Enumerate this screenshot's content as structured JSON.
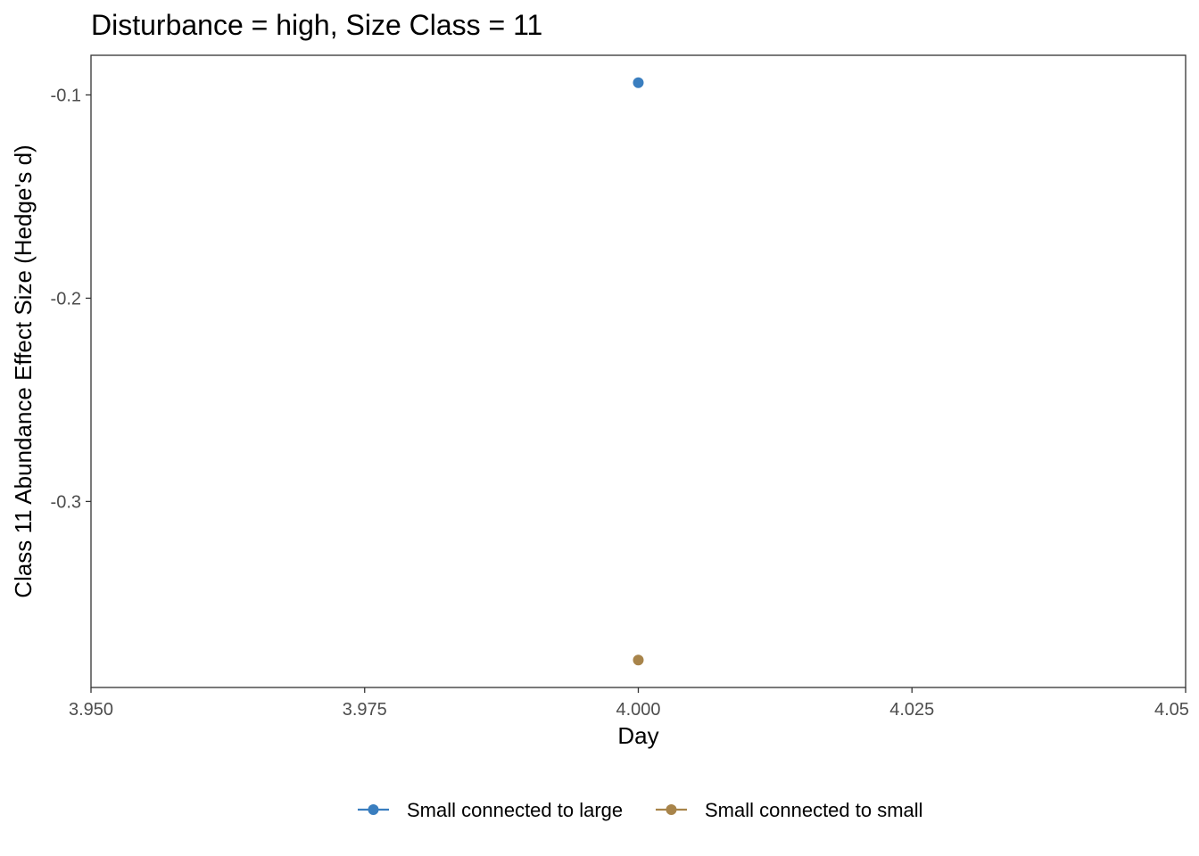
{
  "chart_data": {
    "type": "scatter",
    "title": "Disturbance = high, Size Class = 11",
    "xlabel": "Day",
    "ylabel": "Class 11 Abundance Effect Size (Hedge's d)",
    "xlim": [
      3.95,
      4.05
    ],
    "ylim": [
      -0.3915,
      -0.0805
    ],
    "x_ticks": [
      3.95,
      3.975,
      4.0,
      4.025,
      4.05
    ],
    "x_tick_labels": [
      "3.950",
      "3.975",
      "4.000",
      "4.025",
      "4.05"
    ],
    "y_ticks": [
      -0.1,
      -0.2,
      -0.3
    ],
    "y_tick_labels": [
      "-0.1",
      "-0.2",
      "-0.3"
    ],
    "grid": false,
    "legend_position": "bottom",
    "series": [
      {
        "name": "Small connected to large",
        "color": "#3a7ebf",
        "x": [
          4.0
        ],
        "y": [
          -0.094
        ]
      },
      {
        "name": "Small connected to small",
        "color": "#a8844a",
        "x": [
          4.0
        ],
        "y": [
          -0.378
        ]
      }
    ]
  }
}
